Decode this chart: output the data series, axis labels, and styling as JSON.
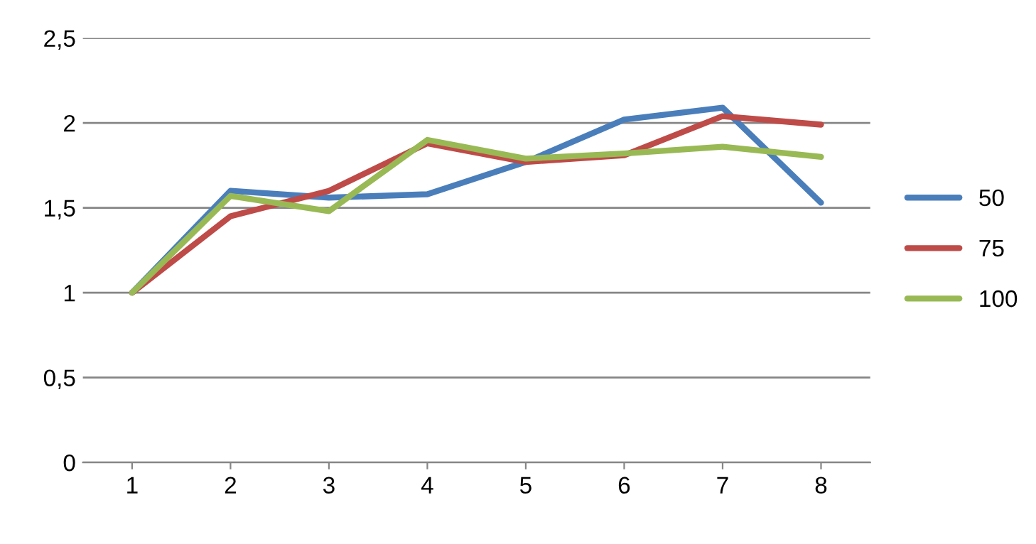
{
  "chart_data": {
    "type": "line",
    "categories": [
      "1",
      "2",
      "3",
      "4",
      "5",
      "6",
      "7",
      "8"
    ],
    "series": [
      {
        "name": "50",
        "color": "#4a7ebb",
        "values": [
          1.0,
          1.6,
          1.56,
          1.58,
          1.77,
          2.02,
          2.09,
          1.53
        ]
      },
      {
        "name": "75",
        "color": "#be4b48",
        "values": [
          1.0,
          1.45,
          1.6,
          1.88,
          1.77,
          1.81,
          2.04,
          1.99
        ]
      },
      {
        "name": "100",
        "color": "#98b954",
        "values": [
          1.0,
          1.57,
          1.48,
          1.9,
          1.79,
          1.82,
          1.86,
          1.8
        ]
      }
    ],
    "ylim": [
      0,
      2.5
    ],
    "yticks": [
      0,
      {
        "value": 0.5,
        "label": "0,5"
      },
      1,
      {
        "value": 1.5,
        "label": "1,5"
      },
      2,
      {
        "value": 2.5,
        "label": "2,5"
      }
    ],
    "grid": "y",
    "legend": "right",
    "marker": "none",
    "line_style": "solid"
  }
}
